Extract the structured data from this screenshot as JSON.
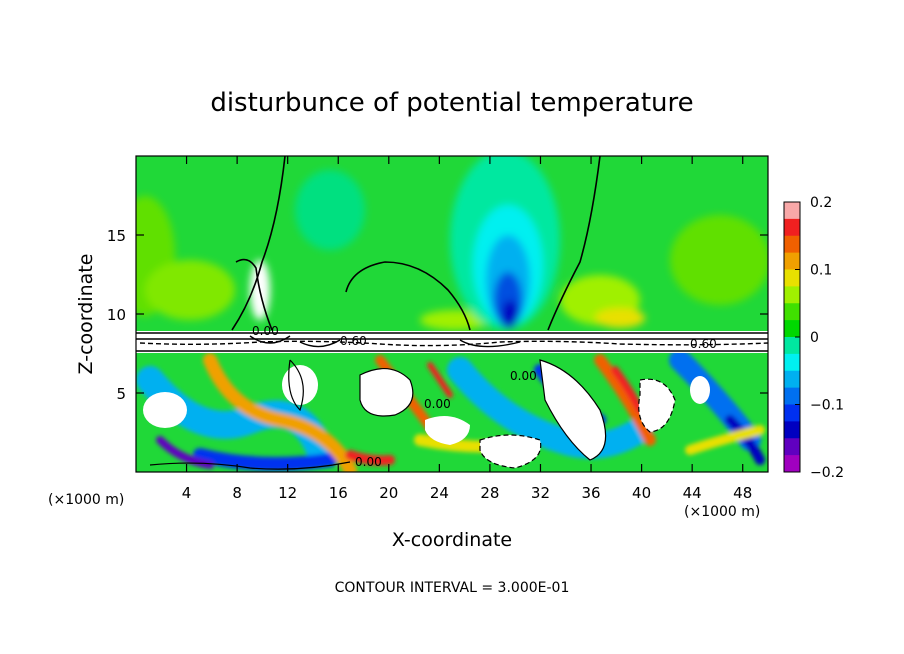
{
  "chart_data": {
    "type": "heatmap",
    "title": "disturbunce of potential temperature",
    "xlabel": "X-coordinate",
    "ylabel": "Z-coordinate",
    "x_unit_left": "(×1000 m)",
    "x_unit_right": "(×1000 m)",
    "xlim": [
      0,
      50
    ],
    "ylim": [
      0,
      20
    ],
    "x_ticks": [
      4,
      8,
      12,
      16,
      20,
      24,
      28,
      32,
      36,
      40,
      44,
      48
    ],
    "x_tick_labels": [
      "4",
      "8",
      "12",
      "16",
      "20",
      "24",
      "28",
      "32",
      "36",
      "40",
      "44",
      "48"
    ],
    "y_ticks": [
      5,
      10,
      15
    ],
    "y_tick_labels": [
      "5",
      "10",
      "15"
    ],
    "colorbar": {
      "range": [
        -0.2,
        0.2
      ],
      "ticks": [
        0.2,
        0.1,
        0,
        -0.1,
        -0.2
      ],
      "tick_labels": [
        "0.2",
        "0.1",
        "0",
        "−0.1",
        "−0.2"
      ],
      "colors": [
        "#f8a8a8",
        "#f02020",
        "#f06000",
        "#f0a000",
        "#e8e000",
        "#a0f000",
        "#40e000",
        "#00d800",
        "#00e8a0",
        "#00f0f0",
        "#00b0f0",
        "#0070f0",
        "#0030f0",
        "#0000c0",
        "#6000c0",
        "#a000c0"
      ]
    },
    "contour_interval_text": "CONTOUR INTERVAL = 3.000E-01",
    "contour_labels": [
      "0.00",
      "0.60"
    ],
    "grid": false,
    "legend": "colorbar-right"
  }
}
